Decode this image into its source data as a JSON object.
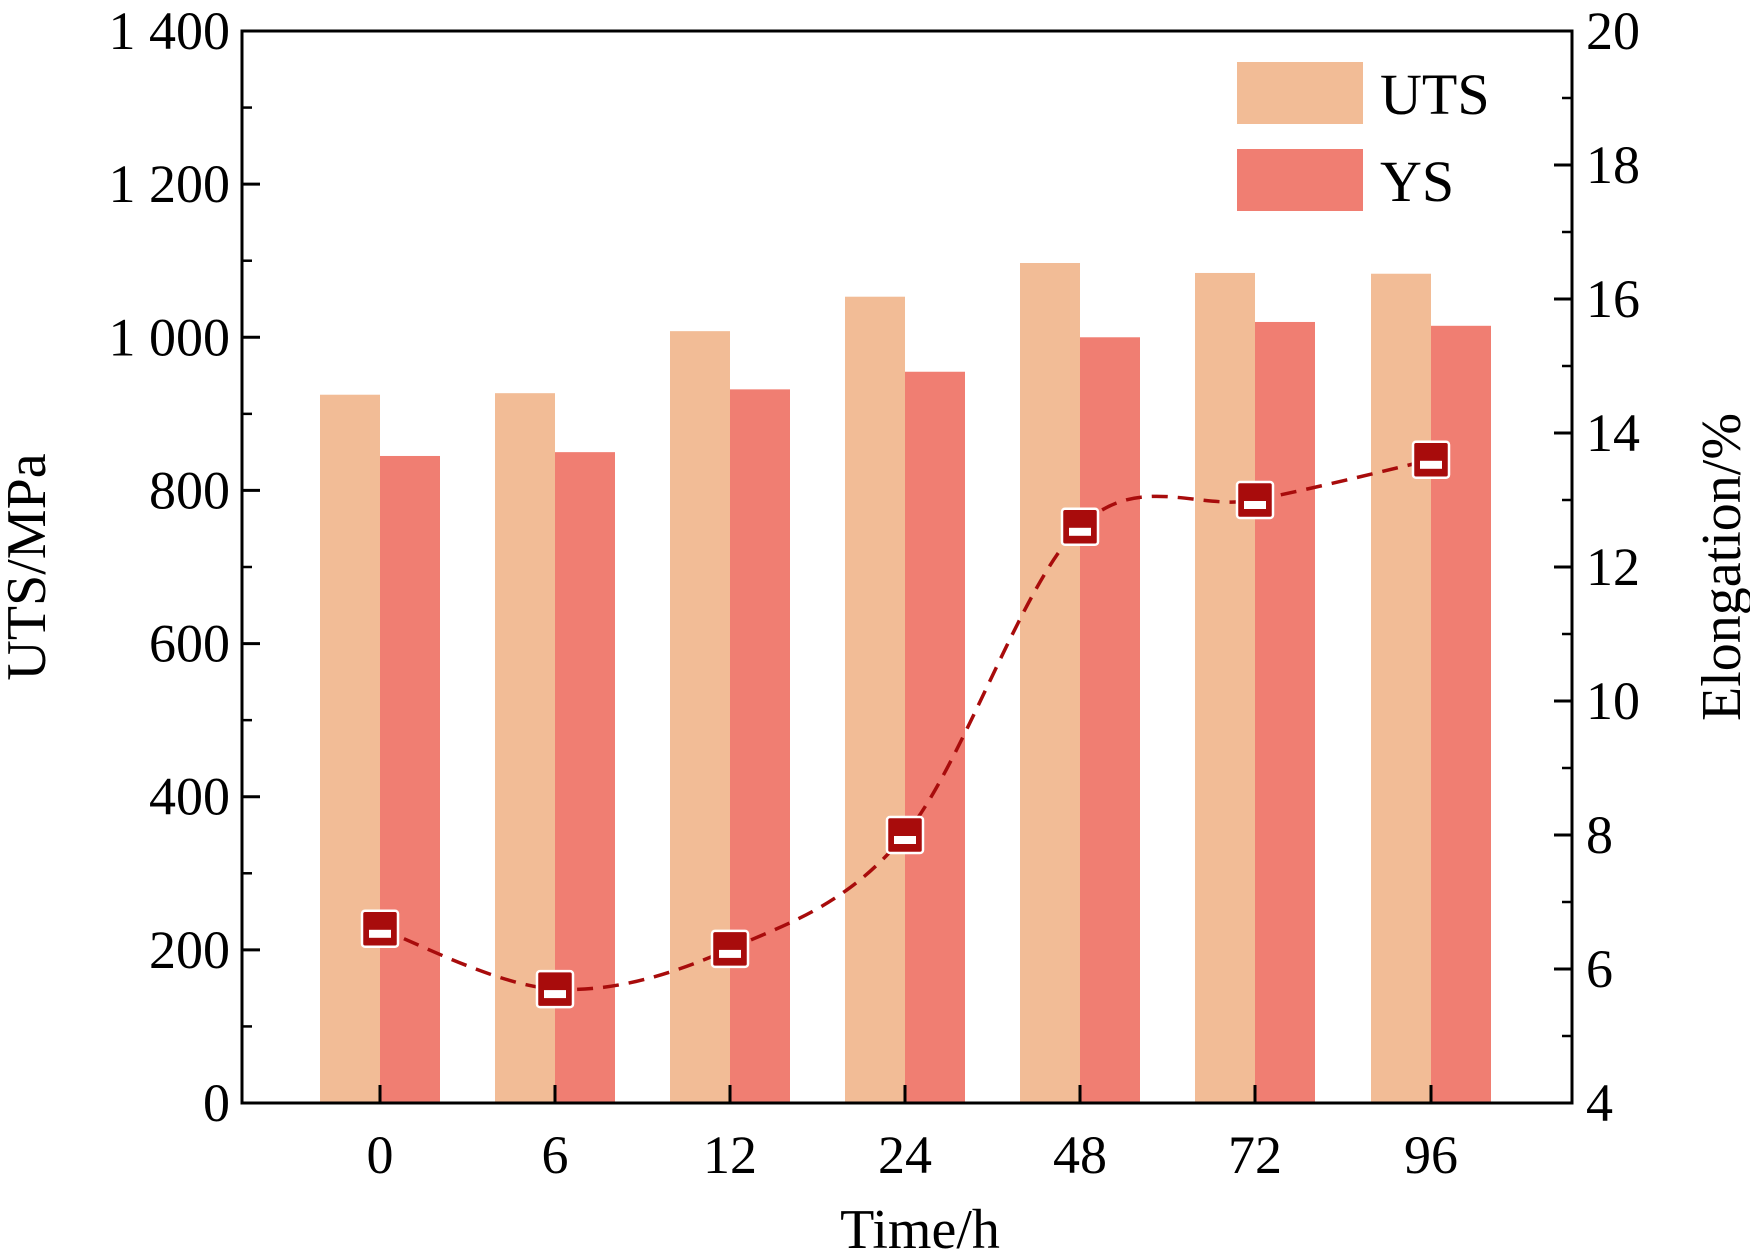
{
  "chart_data": {
    "type": "bar",
    "categories": [
      "0",
      "6",
      "12",
      "24",
      "48",
      "72",
      "96"
    ],
    "series": [
      {
        "name": "UTS",
        "axis": "left",
        "kind": "bar",
        "color": "#F2BC96",
        "values": [
          925,
          927,
          1008,
          1053,
          1097,
          1084,
          1083
        ]
      },
      {
        "name": "YS",
        "axis": "left",
        "kind": "bar",
        "color": "#F07E72",
        "values": [
          845,
          850,
          932,
          955,
          1000,
          1020,
          1015
        ]
      },
      {
        "name": "",
        "axis": "right",
        "kind": "line",
        "color": "#A80C0C",
        "line_style": "dashed",
        "marker": "square-half-white",
        "values": [
          6.6,
          5.7,
          6.3,
          8.0,
          12.6,
          13.0,
          13.6
        ]
      }
    ],
    "xlabel": "Time/h",
    "ylabel": "UTS/MPa",
    "y2label": "Elongation/%",
    "ylim": [
      0,
      1400
    ],
    "y_ticks": [
      0,
      200,
      400,
      600,
      800,
      1000,
      1200,
      1400
    ],
    "y_tick_labels": [
      "0",
      "200",
      "400",
      "600",
      "800",
      "1 000",
      "1 200",
      "1 400"
    ],
    "y2lim": [
      4,
      20
    ],
    "y2_ticks": [
      4,
      6,
      8,
      10,
      12,
      14,
      16,
      18,
      20
    ],
    "y2_tick_labels": [
      "4",
      "6",
      "8",
      "10",
      "12",
      "14",
      "16",
      "18",
      "20"
    ],
    "legend": {
      "position": "top-right",
      "entries": [
        "UTS",
        "YS"
      ]
    },
    "grid": false
  }
}
